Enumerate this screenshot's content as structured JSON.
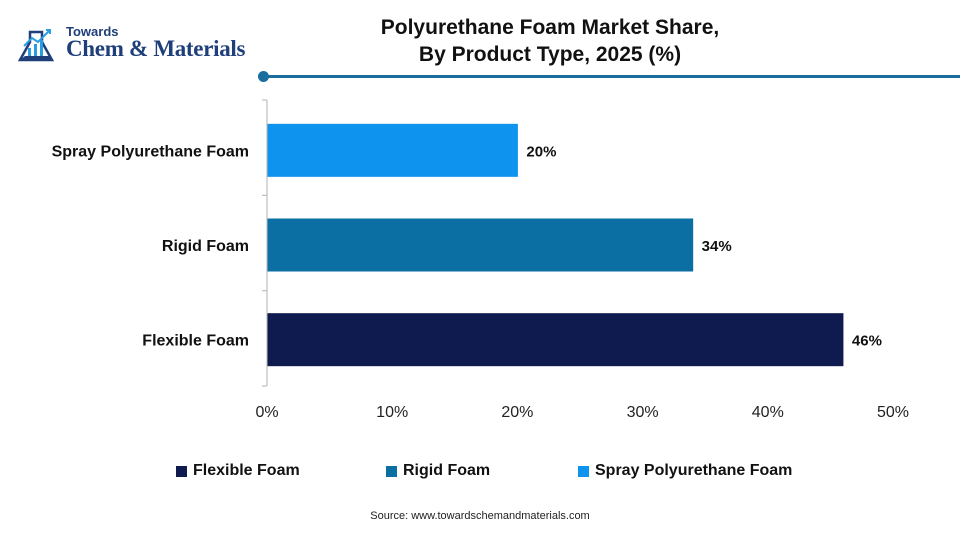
{
  "logo": {
    "line1": "Towards",
    "line2": "Chem & Materials"
  },
  "chart_data": {
    "type": "bar",
    "orientation": "horizontal",
    "title": [
      "Polyurethane Foam Market Share,",
      "By Product Type, 2025 (%)"
    ],
    "categories": [
      "Spray Polyurethane Foam",
      "Rigid Foam",
      "Flexible Foam"
    ],
    "values": [
      20,
      34,
      46
    ],
    "value_labels": [
      "20%",
      "34%",
      "46%"
    ],
    "colors": [
      "#0e93ef",
      "#0b6fa4",
      "#0f1a4e"
    ],
    "xlim": [
      0,
      50
    ],
    "x_ticks": [
      0,
      10,
      20,
      30,
      40,
      50
    ],
    "x_tick_labels": [
      "0%",
      "10%",
      "20%",
      "30%",
      "40%",
      "50%"
    ],
    "grid": false,
    "legend": {
      "placement": "bottom",
      "entries": [
        {
          "name": "Flexible Foam",
          "color": "#0f1a4e"
        },
        {
          "name": "Rigid Foam",
          "color": "#0b6fa4"
        },
        {
          "name": "Spray Polyurethane Foam",
          "color": "#0e93ef"
        }
      ]
    },
    "source": "Source: www.towardschemandmaterials.com"
  }
}
